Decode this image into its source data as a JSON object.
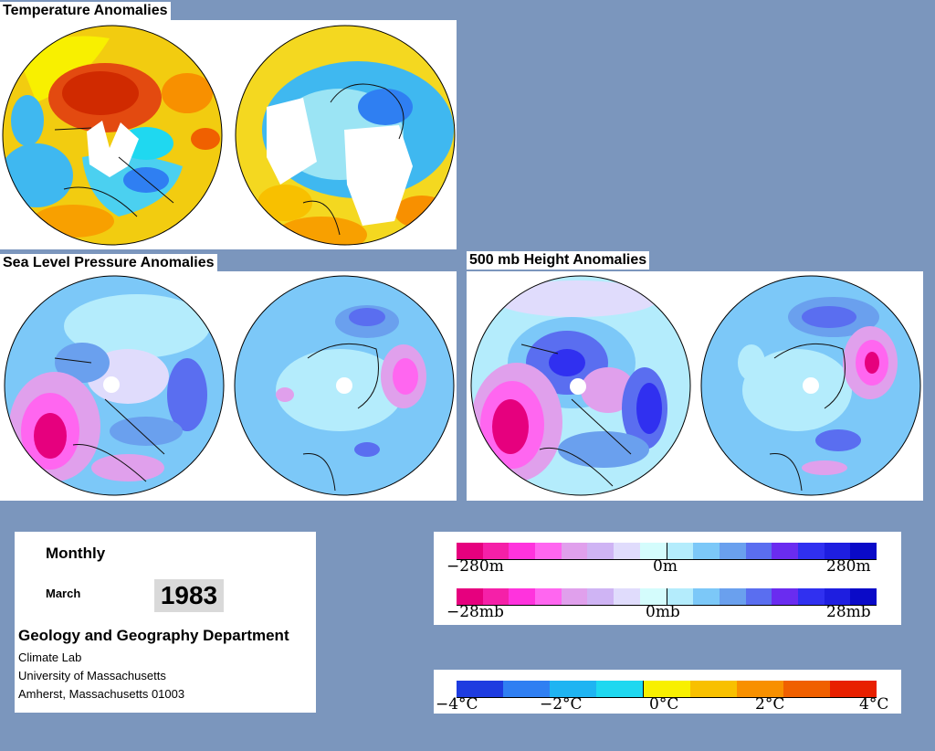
{
  "sections": {
    "temperature_title": "Temperature Anomalies",
    "slp_title": "Sea Level Pressure Anomalies",
    "height_title": "500 mb Height Anomalies"
  },
  "info": {
    "period": "Monthly",
    "month": "March",
    "year": "1983",
    "department": "Geology and Geography Department",
    "line1": "Climate Lab",
    "line2": "University of Massachusetts",
    "line3": "Amherst, Massachusetts 01003"
  },
  "legends": {
    "height": {
      "min": "−280m",
      "mid": "0m",
      "max": "280m"
    },
    "pressure": {
      "min": "−28mb",
      "mid": "0mb",
      "max": "28mb"
    },
    "temperature": {
      "labels": [
        "−4°C",
        "−2°C",
        "0°C",
        "2°C",
        "4°C"
      ]
    }
  },
  "colors": {
    "background": "#7b96bd",
    "anomaly_scale": [
      "#e6007e",
      "#f520a8",
      "#ff33dd",
      "#ff66f0",
      "#e0a0ec",
      "#cfb4f4",
      "#e0dcfc",
      "#d4fcfc",
      "#b4ecfc",
      "#7cc8f8",
      "#6aa0ee",
      "#5a6ef0",
      "#6a2cf0",
      "#3030f0",
      "#1e1ee0",
      "#0a0ac8"
    ],
    "temperature_scale": [
      "#1e3ce0",
      "#2f7ff2",
      "#1fb4f2",
      "#1fd8f0",
      "#f8f000",
      "#f8c000",
      "#f89000",
      "#f06000",
      "#e82000"
    ]
  }
}
